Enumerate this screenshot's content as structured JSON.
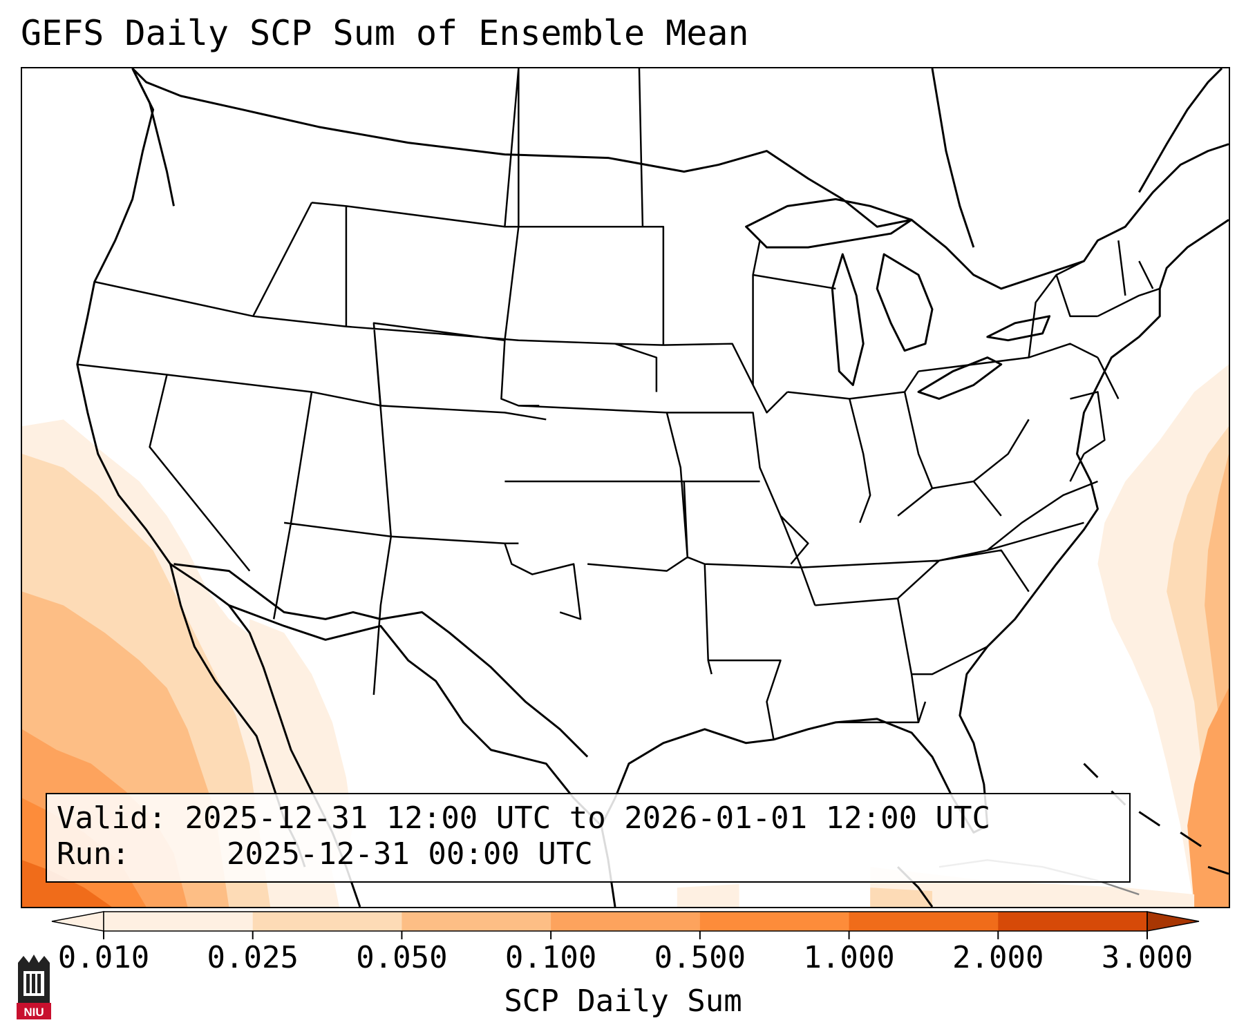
{
  "title": "GEFS Daily SCP Sum of Ensemble Mean",
  "legend": {
    "valid_label": "Valid:",
    "valid_text": "2025-12-31 12:00 UTC to 2026-01-01 12:00 UTC",
    "run_label": "Run:",
    "run_text": "2025-12-31 00:00 UTC"
  },
  "colorbar": {
    "label": "SCP Daily Sum",
    "ticks": [
      "0.010",
      "0.025",
      "0.050",
      "0.100",
      "0.500",
      "1.000",
      "2.000",
      "3.000"
    ],
    "colors": [
      "#fef0e2",
      "#fddbb6",
      "#fdbe85",
      "#fda35d",
      "#fd8c3a",
      "#f06c1a",
      "#d64a08",
      "#a83603"
    ],
    "extend": "both"
  },
  "map": {
    "region": "CONUS",
    "field": "SCP daily sum",
    "outline_color": "#000000",
    "land_fill": "#ffffff"
  },
  "logo": {
    "text": "NIU",
    "color": "#c8102e",
    "icon": "university-tower-icon"
  }
}
